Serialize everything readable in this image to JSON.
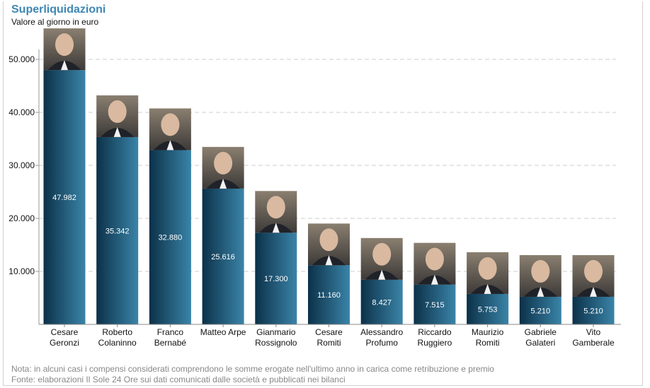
{
  "chart_data": {
    "type": "bar",
    "title": "Superliquidazioni",
    "subtitle": "Valore al giorno in euro",
    "categories": [
      [
        "Cesare",
        "Geronzi"
      ],
      [
        "Roberto",
        "Colaninno"
      ],
      [
        "Franco",
        "Bernabé"
      ],
      [
        "Matteo Arpe"
      ],
      [
        "Gianmario",
        "Rossignolo"
      ],
      [
        "Cesare",
        "Romiti"
      ],
      [
        "Alessandro",
        "Profumo"
      ],
      [
        "Riccardo",
        "Ruggiero"
      ],
      [
        "Maurizio",
        "Romiti"
      ],
      [
        "Gabriele",
        "Galateri"
      ],
      [
        "Vito",
        "Gamberale"
      ]
    ],
    "values": [
      47982,
      35342,
      32880,
      25616,
      17300,
      11160,
      8427,
      7515,
      5753,
      5210,
      5210
    ],
    "value_labels": [
      "47.982",
      "35.342",
      "32.880",
      "25.616",
      "17.300",
      "11.160",
      "8.427",
      "7.515",
      "5.753",
      "5.210",
      "5.210"
    ],
    "ylim": [
      0,
      50000
    ],
    "yticks": [
      10000,
      20000,
      30000,
      40000,
      50000
    ],
    "ytick_labels": [
      "10.000",
      "20.000",
      "30.000",
      "40.000",
      "50.000"
    ],
    "grid": "horizontal dashed",
    "bar_images": "portrait photo above each bar",
    "colors": {
      "bar_dark": "#0c3149",
      "bar_light": "#3a84a8",
      "title": "#3e87b4",
      "grid": "#cccccc"
    }
  },
  "footer": {
    "note": "Nota: in alcuni casi i compensi considerati comprendono le somme erogate nell'ultimo anno in carica come retribuzione e premio",
    "source": "Fonte: elaborazioni Il Sole 24 Ore sui dati comunicati dalle società e pubblicati nei bilanci"
  }
}
